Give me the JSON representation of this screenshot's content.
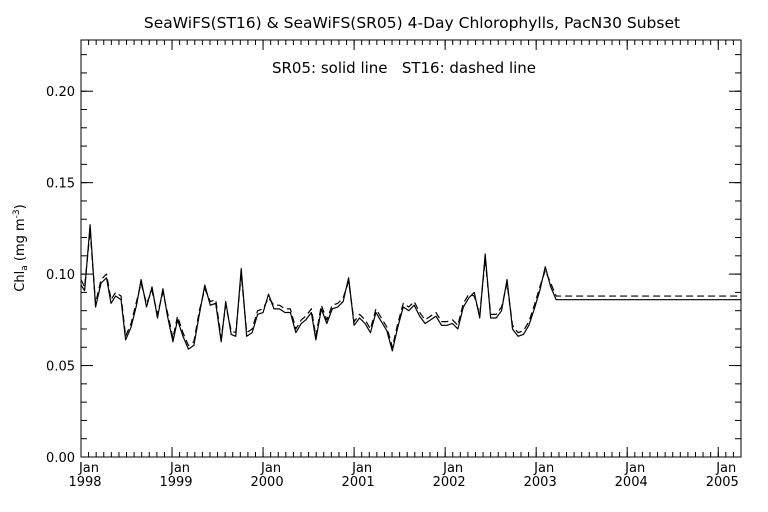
{
  "chart_data": {
    "type": "line",
    "title": "SeaWiFS(ST16) & SeaWiFS(SR05) 4-Day Chlorophylls, PacN30 Subset",
    "annotation": "SR05: solid line   ST16: dashed line",
    "ylabel": "Chl_a (mg m^-3)",
    "ylabel_main": "Chl",
    "ylabel_sub": "a",
    "ylabel_unit": " (mg m",
    "ylabel_exp": "-3",
    "ylabel_close": ")",
    "xlim": [
      1998.0,
      2005.25
    ],
    "ylim": [
      0.0,
      0.228
    ],
    "yticks": [
      "0.00",
      "0.05",
      "0.10",
      "0.15",
      "0.20"
    ],
    "ytick_values": [
      0.0,
      0.05,
      0.1,
      0.15,
      0.2
    ],
    "xtick_month": "Jan",
    "xticks": [
      "1998",
      "1999",
      "2000",
      "2001",
      "2002",
      "2003",
      "2004",
      "2005"
    ],
    "xtick_values": [
      1998,
      1999,
      2000,
      2001,
      2002,
      2003,
      2004,
      2005
    ],
    "grid": false,
    "series": [
      {
        "name": "SR05",
        "style": "solid",
        "color": "#000000",
        "x": [
          1998.0,
          1998.04,
          1998.1,
          1998.16,
          1998.22,
          1998.28,
          1998.33,
          1998.38,
          1998.44,
          1998.49,
          1998.55,
          1998.61,
          1998.66,
          1998.72,
          1998.78,
          1998.84,
          1998.9,
          1998.95,
          1999.01,
          1999.06,
          1999.12,
          1999.18,
          1999.24,
          1999.3,
          1999.36,
          1999.42,
          1999.48,
          1999.54,
          1999.59,
          1999.65,
          1999.7,
          1999.76,
          1999.82,
          1999.88,
          1999.94,
          2000.0,
          2000.06,
          2000.12,
          2000.18,
          2000.24,
          2000.3,
          2000.36,
          2000.42,
          2000.47,
          2000.53,
          2000.58,
          2000.64,
          2000.7,
          2000.76,
          2000.82,
          2000.88,
          2000.94,
          2001.0,
          2001.06,
          2001.12,
          2001.18,
          2001.24,
          2001.3,
          2001.36,
          2001.42,
          2001.48,
          2001.54,
          2001.6,
          2001.66,
          2001.72,
          2001.78,
          2001.84,
          2001.9,
          2001.96,
          2002.02,
          2002.08,
          2002.14,
          2002.2,
          2002.26,
          2002.32,
          2002.38,
          2002.44,
          2002.5,
          2002.56,
          2002.62,
          2002.68,
          2002.74,
          2002.8,
          2002.86,
          2002.92,
          2002.98,
          2003.04,
          2003.1,
          2003.16,
          2003.22,
          2003.28,
          2003.34,
          2003.4,
          2003.46,
          2003.52,
          2003.58,
          2003.64,
          2003.7,
          2003.76,
          2003.82,
          2003.88,
          2003.94,
          2004.0,
          2004.06,
          2004.12,
          2004.18,
          2004.24,
          2004.3,
          2004.36,
          2004.42,
          2004.48,
          2004.54,
          2004.6,
          2004.66,
          2004.72,
          2004.78,
          2004.84,
          2004.9,
          2004.96,
          2005.02,
          2005.08,
          2005.14,
          2005.2,
          2005.25
        ],
        "y": [
          0.094,
          0.091,
          0.127,
          0.082,
          0.095,
          0.098,
          0.084,
          0.088,
          0.086,
          0.064,
          0.071,
          0.083,
          0.097,
          0.082,
          0.093,
          0.076,
          0.092,
          0.077,
          0.063,
          0.075,
          0.066,
          0.059,
          0.061,
          0.078,
          0.094,
          0.083,
          0.084,
          0.063,
          0.085,
          0.067,
          0.066,
          0.103,
          0.066,
          0.068,
          0.078,
          0.079,
          0.089,
          0.081,
          0.081,
          0.079,
          0.079,
          0.068,
          0.073,
          0.075,
          0.079,
          0.064,
          0.081,
          0.073,
          0.081,
          0.082,
          0.085,
          0.098,
          0.072,
          0.076,
          0.073,
          0.068,
          0.079,
          0.074,
          0.069,
          0.058,
          0.071,
          0.082,
          0.08,
          0.083,
          0.077,
          0.073,
          0.075,
          0.077,
          0.072,
          0.072,
          0.073,
          0.07,
          0.082,
          0.087,
          0.09,
          0.076,
          0.111,
          0.076,
          0.076,
          0.08,
          0.097,
          0.07,
          0.066,
          0.067,
          0.072,
          0.081,
          0.091,
          0.104,
          0.093,
          0.086,
          0.086,
          0.086,
          0.086,
          0.086,
          0.086,
          0.086,
          0.086,
          0.086,
          0.086,
          0.086,
          0.086,
          0.086,
          0.086,
          0.086,
          0.086,
          0.086,
          0.086,
          0.086,
          0.086,
          0.086,
          0.086,
          0.086,
          0.086,
          0.086,
          0.086,
          0.086,
          0.086,
          0.086,
          0.086,
          0.086,
          0.086,
          0.086,
          0.086,
          0.086
        ]
      },
      {
        "name": "ST16",
        "style": "dashed",
        "color": "#000000",
        "x": [
          1998.0,
          1998.04,
          1998.1,
          1998.16,
          1998.22,
          1998.28,
          1998.33,
          1998.38,
          1998.44,
          1998.49,
          1998.55,
          1998.61,
          1998.66,
          1998.72,
          1998.78,
          1998.84,
          1998.9,
          1998.95,
          1999.01,
          1999.06,
          1999.12,
          1999.18,
          1999.24,
          1999.3,
          1999.36,
          1999.42,
          1999.48,
          1999.54,
          1999.59,
          1999.65,
          1999.7,
          1999.76,
          1999.82,
          1999.88,
          1999.94,
          2000.0,
          2000.06,
          2000.12,
          2000.18,
          2000.24,
          2000.3,
          2000.36,
          2000.42,
          2000.47,
          2000.53,
          2000.58,
          2000.64,
          2000.7,
          2000.76,
          2000.82,
          2000.88,
          2000.94,
          2001.0,
          2001.06,
          2001.12,
          2001.18,
          2001.24,
          2001.3,
          2001.36,
          2001.42,
          2001.48,
          2001.54,
          2001.6,
          2001.66,
          2001.72,
          2001.78,
          2001.84,
          2001.9,
          2001.96,
          2002.02,
          2002.08,
          2002.14,
          2002.2,
          2002.26,
          2002.32,
          2002.38,
          2002.44,
          2002.5,
          2002.56,
          2002.62,
          2002.68,
          2002.74,
          2002.8,
          2002.86,
          2002.92,
          2002.98,
          2003.04,
          2003.1,
          2003.16,
          2003.22,
          2003.28,
          2003.34,
          2003.4,
          2003.46,
          2003.52,
          2003.58,
          2003.64,
          2003.7,
          2003.76,
          2003.82,
          2003.88,
          2003.94,
          2004.0,
          2004.06,
          2004.12,
          2004.18,
          2004.24,
          2004.3,
          2004.36,
          2004.42,
          2004.48,
          2004.54,
          2004.6,
          2004.66,
          2004.72,
          2004.78,
          2004.84,
          2004.9,
          2004.96,
          2005.02,
          2005.08,
          2005.14,
          2005.2,
          2005.25
        ],
        "y": [
          0.097,
          0.093,
          0.124,
          0.084,
          0.097,
          0.1,
          0.086,
          0.09,
          0.088,
          0.066,
          0.073,
          0.085,
          0.095,
          0.084,
          0.091,
          0.078,
          0.09,
          0.079,
          0.065,
          0.077,
          0.068,
          0.061,
          0.063,
          0.08,
          0.092,
          0.085,
          0.086,
          0.065,
          0.083,
          0.069,
          0.068,
          0.1,
          0.068,
          0.07,
          0.08,
          0.081,
          0.087,
          0.083,
          0.083,
          0.081,
          0.081,
          0.07,
          0.075,
          0.077,
          0.081,
          0.066,
          0.083,
          0.075,
          0.083,
          0.084,
          0.087,
          0.096,
          0.074,
          0.078,
          0.075,
          0.07,
          0.081,
          0.076,
          0.071,
          0.06,
          0.073,
          0.084,
          0.082,
          0.085,
          0.079,
          0.075,
          0.077,
          0.079,
          0.074,
          0.074,
          0.075,
          0.072,
          0.084,
          0.089,
          0.088,
          0.078,
          0.108,
          0.078,
          0.078,
          0.082,
          0.095,
          0.072,
          0.068,
          0.069,
          0.074,
          0.083,
          0.093,
          0.102,
          0.095,
          0.088,
          0.088,
          0.088,
          0.088,
          0.088,
          0.088,
          0.088,
          0.088,
          0.088,
          0.088,
          0.088,
          0.088,
          0.088,
          0.088,
          0.088,
          0.088,
          0.088,
          0.088,
          0.088,
          0.088,
          0.088,
          0.088,
          0.088,
          0.088,
          0.088,
          0.088,
          0.088,
          0.088,
          0.088,
          0.088,
          0.088,
          0.088,
          0.088,
          0.088,
          0.088
        ]
      }
    ]
  }
}
